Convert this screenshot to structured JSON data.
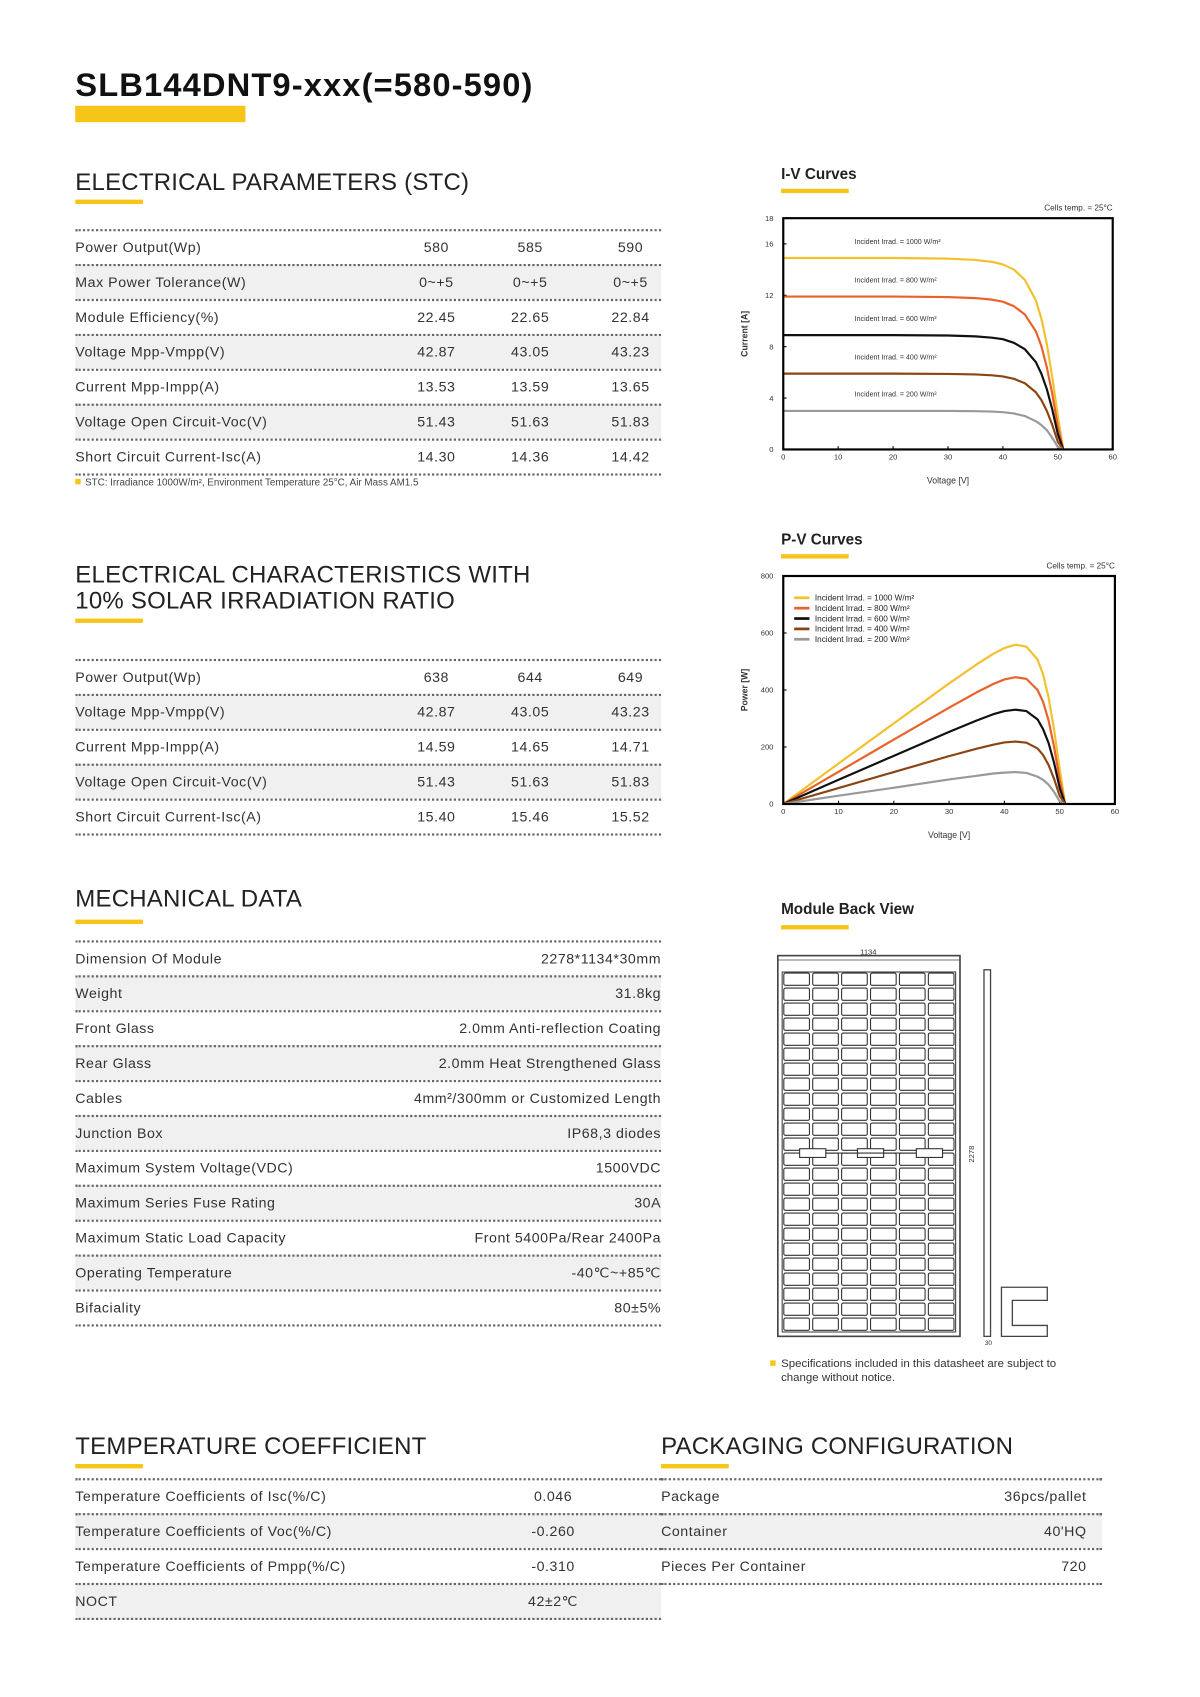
{
  "header": {
    "title": "SLB144DNT9-xxx(=580-590)"
  },
  "electrical": {
    "title": "ELECTRICAL PARAMETERS (STC)",
    "rows": [
      [
        "Power Output(Wp)",
        "580",
        "585",
        "590"
      ],
      [
        "Max Power Tolerance(W)",
        "0~+5",
        "0~+5",
        "0~+5"
      ],
      [
        "Module Efficiency(%)",
        "22.45",
        "22.65",
        "22.84"
      ],
      [
        "Voltage Mpp-Vmpp(V)",
        "42.87",
        "43.05",
        "43.23"
      ],
      [
        "Current Mpp-Impp(A)",
        "13.53",
        "13.59",
        "13.65"
      ],
      [
        "Voltage Open Circuit-Voc(V)",
        "51.43",
        "51.63",
        "51.83"
      ],
      [
        "Short Circuit Current-Isc(A)",
        "14.30",
        "14.36",
        "14.42"
      ]
    ],
    "note": "STC: Irradiance 1000W/m², Environment Temperature 25°C, Air Mass AM1.5"
  },
  "low_irradiance": {
    "title": "ELECTRICAL CHARACTERISTICS WITH 10% SOLAR IRRADIATION RATIO",
    "rows": [
      [
        "Power Output(Wp)",
        "638",
        "644",
        "649"
      ],
      [
        "Voltage Mpp-Vmpp(V)",
        "42.87",
        "43.05",
        "43.23"
      ],
      [
        "Current Mpp-Impp(A)",
        "14.59",
        "14.65",
        "14.71"
      ],
      [
        "Voltage Open Circuit-Voc(V)",
        "51.43",
        "51.63",
        "51.83"
      ],
      [
        "Short Circuit Current-Isc(A)",
        "15.40",
        "15.46",
        "15.52"
      ]
    ]
  },
  "mechanical": {
    "title": "MECHANICAL DATA",
    "rows": [
      [
        "Dimension Of Module",
        "2278*1134*30mm"
      ],
      [
        "Weight",
        "31.8kg"
      ],
      [
        "Front Glass",
        "2.0mm Anti-reflection Coating"
      ],
      [
        "Rear Glass",
        "2.0mm Heat Strengthened Glass"
      ],
      [
        "Cables",
        "4mm²/300mm or Customized Length"
      ],
      [
        "Junction Box",
        "IP68,3 diodes"
      ],
      [
        "Maximum System Voltage(VDC)",
        "1500VDC"
      ],
      [
        "Maximum Series Fuse Rating",
        "30A"
      ],
      [
        "Maximum Static Load Capacity",
        "Front 5400Pa/Rear 2400Pa"
      ],
      [
        "Operating Temperature",
        "-40℃~+85℃"
      ],
      [
        "Bifaciality",
        "80±5%"
      ]
    ]
  },
  "temperature": {
    "title": "TEMPERATURE COEFFICIENT",
    "rows": [
      [
        "Temperature Coefficients of Isc(%/C)",
        "0.046"
      ],
      [
        "Temperature Coefficients of Voc(%/C)",
        "-0.260"
      ],
      [
        "Temperature Coefficients of Pmpp(%/C)",
        "-0.310"
      ],
      [
        "NOCT",
        "42±2℃"
      ]
    ]
  },
  "packaging": {
    "title": "PACKAGING CONFIGURATION",
    "rows": [
      [
        "Package",
        "36pcs/pallet"
      ],
      [
        "Container",
        "40'HQ"
      ],
      [
        "Pieces Per Container",
        "720"
      ]
    ]
  },
  "chart_data": [
    {
      "type": "line",
      "title": "I-V Curves",
      "note": "Cells temp. = 25°C",
      "x_label": "Voltage [V]",
      "y_label": "Current [A]",
      "xlim": [
        0,
        60
      ],
      "xticks": [
        0,
        10,
        20,
        30,
        40,
        50,
        60
      ],
      "ylim": [
        0,
        18
      ],
      "yticks": [
        0,
        4,
        8,
        12,
        16,
        18
      ],
      "labels_inside": true,
      "x": [
        0,
        10,
        20,
        30,
        35,
        38,
        40,
        42,
        44,
        46,
        47,
        48,
        49,
        50,
        51
      ],
      "series": [
        {
          "name": "Incident Irrad. = 1000 W/m²",
          "color": "#f2c12e",
          "values": [
            14.9,
            14.9,
            14.9,
            14.85,
            14.75,
            14.6,
            14.4,
            14.0,
            13.2,
            11.6,
            10.2,
            8.2,
            5.6,
            2.6,
            0
          ]
        },
        {
          "name": "Incident Irrad. = 800 W/m²",
          "color": "#e8622a",
          "values": [
            11.9,
            11.9,
            11.9,
            11.86,
            11.78,
            11.66,
            11.5,
            11.15,
            10.5,
            9.2,
            8.05,
            6.4,
            4.3,
            1.8,
            0
          ]
        },
        {
          "name": "Incident Irrad. = 600 W/m²",
          "color": "#111111",
          "values": [
            8.9,
            8.9,
            8.9,
            8.87,
            8.8,
            8.7,
            8.58,
            8.3,
            7.8,
            6.8,
            5.9,
            4.7,
            3.1,
            1.2,
            0
          ]
        },
        {
          "name": "Incident Irrad. = 400 W/m²",
          "color": "#8b4513",
          "values": [
            5.9,
            5.9,
            5.9,
            5.88,
            5.84,
            5.77,
            5.68,
            5.5,
            5.15,
            4.45,
            3.85,
            3.0,
            1.9,
            0.6,
            0
          ]
        },
        {
          "name": "Incident Irrad. = 200 W/m²",
          "color": "#999999",
          "values": [
            3.0,
            3.0,
            3.0,
            3.0,
            2.98,
            2.95,
            2.9,
            2.8,
            2.6,
            2.2,
            1.9,
            1.5,
            0.9,
            0.2,
            0
          ]
        }
      ]
    },
    {
      "type": "line",
      "title": "P-V Curves",
      "note": "Cells temp. = 25°C",
      "x_label": "Voltage [V]",
      "y_label": "Power [W]",
      "xlim": [
        0,
        60
      ],
      "xticks": [
        0,
        10,
        20,
        30,
        40,
        50,
        60
      ],
      "ylim": [
        0,
        800
      ],
      "yticks": [
        0,
        200,
        400,
        600,
        800
      ],
      "legend": "top-left",
      "x": [
        0,
        10,
        20,
        30,
        35,
        38,
        40,
        42,
        44,
        46,
        47,
        48,
        49,
        50,
        51
      ],
      "series": [
        {
          "name": "Incident Irrad. = 1000 W/m²",
          "color": "#f2c12e",
          "values": [
            0,
            142,
            283,
            423,
            490,
            527,
            547,
            559,
            552,
            507,
            455,
            374,
            260,
            124,
            0
          ]
        },
        {
          "name": "Incident Irrad. = 800 W/m²",
          "color": "#e8622a",
          "values": [
            0,
            113,
            226,
            338,
            392,
            421,
            437,
            445,
            439,
            400,
            359,
            293,
            200,
            86,
            0
          ]
        },
        {
          "name": "Incident Irrad. = 600 W/m²",
          "color": "#111111",
          "values": [
            0,
            85,
            169,
            253,
            293,
            315,
            326,
            331,
            326,
            297,
            263,
            214,
            144,
            57,
            0
          ]
        },
        {
          "name": "Incident Irrad. = 400 W/m²",
          "color": "#8b4513",
          "values": [
            0,
            56,
            112,
            168,
            194,
            208,
            216,
            219,
            215,
            195,
            172,
            137,
            88,
            29,
            0
          ]
        },
        {
          "name": "Incident Irrad. = 200 W/m²",
          "color": "#999999",
          "values": [
            0,
            29,
            57,
            86,
            99,
            107,
            110,
            112,
            109,
            96,
            85,
            68,
            42,
            10,
            0
          ]
        }
      ]
    }
  ],
  "back_view": {
    "title": "Module Back View",
    "width_label": "1134",
    "height_label": "2278",
    "depth_label": "30",
    "note": "Specifications included in this datasheet are subject to change without notice."
  }
}
